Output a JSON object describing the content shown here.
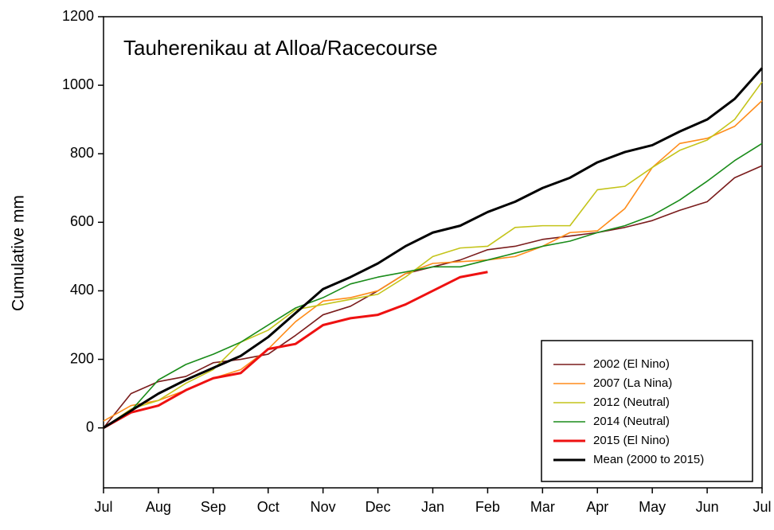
{
  "chart_data": {
    "type": "line",
    "title": "Tauherenikau at Alloa/Racecourse",
    "y_label": "Cumulative mm",
    "categories": [
      "Jul",
      null,
      "Aug",
      null,
      "Sep",
      null,
      "Oct",
      null,
      "Nov",
      null,
      "Dec",
      null,
      "Jan",
      null,
      "Feb",
      null,
      "Mar",
      null,
      "Apr",
      null,
      "May",
      null,
      "Jun",
      null,
      "Jul"
    ],
    "series": [
      {
        "name": "2002 (El Nino)",
        "color": "#7a1c1c",
        "values": [
          0,
          100,
          135,
          150,
          190,
          200,
          215,
          270,
          330,
          355,
          400,
          450,
          470,
          490,
          520,
          530,
          550,
          560,
          570,
          585,
          605,
          635,
          660,
          730,
          765
        ]
      },
      {
        "name": "2007 (La Nina)",
        "color": "#ff8c1a",
        "values": [
          20,
          65,
          80,
          110,
          145,
          170,
          230,
          310,
          370,
          380,
          400,
          450,
          480,
          485,
          490,
          500,
          530,
          570,
          575,
          640,
          760,
          830,
          845,
          880,
          955
        ]
      },
      {
        "name": "2012 (Neutral)",
        "color": "#c4c41a",
        "values": [
          0,
          55,
          80,
          130,
          170,
          250,
          285,
          345,
          360,
          375,
          390,
          440,
          500,
          525,
          530,
          585,
          590,
          590,
          695,
          705,
          760,
          810,
          840,
          900,
          1010
        ]
      },
      {
        "name": "2014 (Neutral)",
        "color": "#1a8c1a",
        "values": [
          0,
          50,
          140,
          185,
          215,
          250,
          300,
          350,
          380,
          420,
          440,
          455,
          470,
          470,
          490,
          510,
          530,
          545,
          570,
          590,
          620,
          665,
          720,
          780,
          830
        ]
      },
      {
        "name": "2015 (El Nino)",
        "color": "#ee1111",
        "values": [
          0,
          45,
          65,
          110,
          145,
          160,
          230,
          245,
          300,
          320,
          330,
          360,
          400,
          440,
          455,
          null,
          null,
          null,
          null,
          null,
          null,
          null,
          null,
          null,
          null
        ]
      },
      {
        "name": "Mean (2000 to 2015)",
        "color": "#000000",
        "values": [
          0,
          50,
          100,
          140,
          175,
          210,
          265,
          335,
          405,
          440,
          480,
          530,
          570,
          590,
          630,
          660,
          700,
          730,
          775,
          805,
          825,
          865,
          900,
          960,
          1050
        ]
      }
    ],
    "ylim": [
      -175,
      1200
    ],
    "yticks": [
      0,
      200,
      400,
      600,
      800,
      1000,
      1200
    ],
    "legend": "lower right"
  }
}
